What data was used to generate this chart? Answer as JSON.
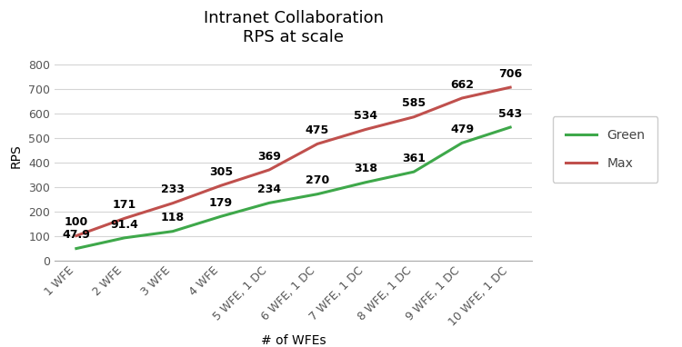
{
  "title_line1": "Intranet Collaboration",
  "title_line2": "RPS at scale",
  "xlabel": "# of WFEs",
  "ylabel": "RPS",
  "categories": [
    "1 WFE",
    "2 WFE",
    "3 WFE",
    "4 WFE",
    "5 WFE, 1 DC",
    "6 WFE, 1 DC",
    "7 WFE, 1 DC",
    "8 WFE, 1 DC",
    "9 WFE, 1 DC",
    "10 WFE, 1 DC"
  ],
  "green_values": [
    47.9,
    91.4,
    118,
    179,
    234,
    270,
    318,
    361,
    479,
    543
  ],
  "max_values": [
    100,
    171,
    233,
    305,
    369,
    475,
    534,
    585,
    662,
    706
  ],
  "green_labels": [
    "47.9",
    "91.4",
    "118",
    "179",
    "234",
    "270",
    "318",
    "361",
    "479",
    "543"
  ],
  "max_labels": [
    "100",
    "171",
    "233",
    "305",
    "369",
    "475",
    "534",
    "585",
    "662",
    "706"
  ],
  "green_color": "#3EA84A",
  "max_color": "#C0504D",
  "green_label": "Green",
  "max_label": "Max",
  "ylim": [
    0,
    850
  ],
  "yticks": [
    0,
    100,
    200,
    300,
    400,
    500,
    600,
    700,
    800
  ],
  "background_color": "#ffffff",
  "grid_color": "#d5d5d5",
  "title_fontsize": 13,
  "axis_label_fontsize": 10,
  "tick_fontsize": 9,
  "annotation_fontsize": 9,
  "legend_fontsize": 10,
  "line_width": 2.2
}
